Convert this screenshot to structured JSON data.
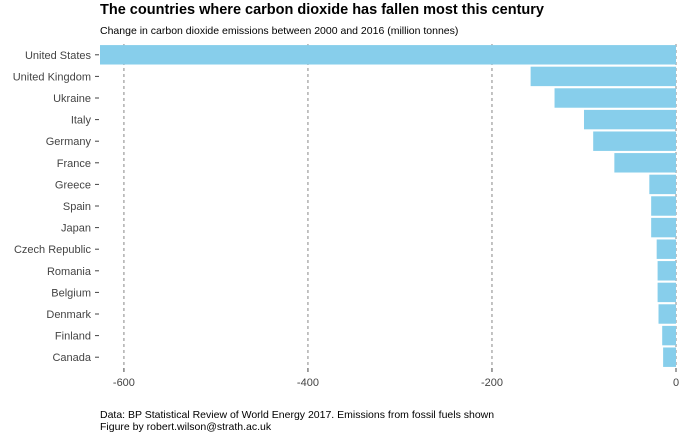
{
  "title": "The countries where carbon dioxide has fallen most this century",
  "subtitle": "Change in carbon dioxide emissions between 2000 and 2016 (million tonnes)",
  "source": {
    "line1": "Data: BP Statistical Review of World Energy 2017. Emissions from fossil fuels shown",
    "line2": "Figure by robert.wilson@strath.ac.uk"
  },
  "colors": {
    "bar": "#87ceeb",
    "grid": "#888888",
    "axis_text": "#444444"
  },
  "chart_data": {
    "type": "bar",
    "orientation": "horizontal",
    "title": "The countries where carbon dioxide has fallen most this century",
    "subtitle": "Change in carbon dioxide emissions between 2000 and 2016 (million tonnes)",
    "xlabel": "",
    "ylabel": "",
    "categories": [
      "United States",
      "United Kingdom",
      "Ukraine",
      "Italy",
      "Germany",
      "France",
      "Greece",
      "Spain",
      "Japan",
      "Czech Republic",
      "Romania",
      "Belgium",
      "Denmark",
      "Finland",
      "Canada"
    ],
    "values": [
      -626,
      -158,
      -132,
      -100,
      -90,
      -67,
      -29,
      -27,
      -27,
      -21,
      -20,
      -20,
      -19,
      -15,
      -14
    ],
    "xlim": [
      -626,
      0
    ],
    "xticks": [
      -600,
      -400,
      -200,
      0
    ],
    "grid": "vertical dashed",
    "legend": "none"
  }
}
